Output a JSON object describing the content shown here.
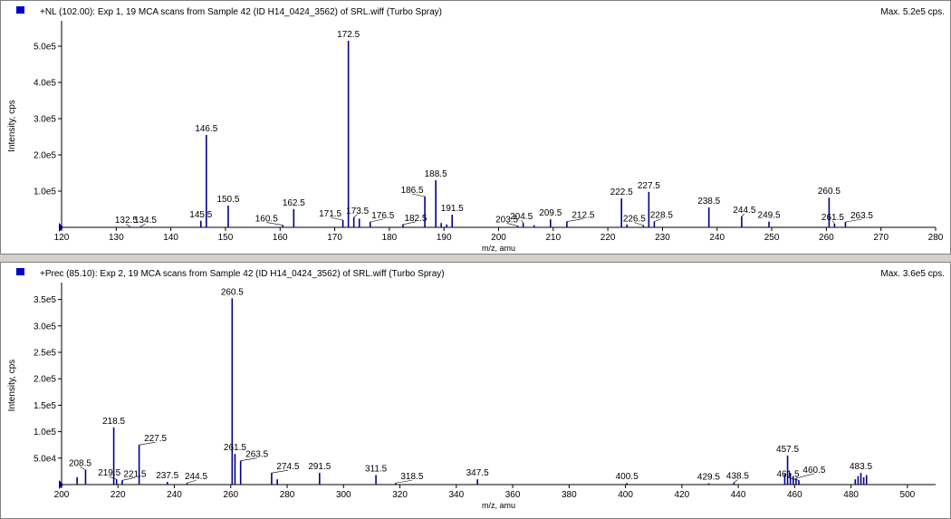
{
  "chart_data": [
    {
      "type": "bar",
      "title": "+NL (102.00): Exp 1, 19 MCA scans from Sample 42 (ID H14_0424_3562) of SRL.wiff (Turbo Spray)",
      "max_label": "Max. 5.2e5 cps.",
      "xlabel": "m/z, amu",
      "ylabel": "Intensity, cps",
      "xlim": [
        120,
        280
      ],
      "ylim": [
        0,
        560000
      ],
      "x_ticks": [
        120,
        130,
        140,
        150,
        160,
        170,
        180,
        190,
        200,
        210,
        220,
        230,
        240,
        250,
        260,
        270,
        280
      ],
      "y_ticks": [
        {
          "value": 100000,
          "label": "1.0e5"
        },
        {
          "value": 200000,
          "label": "2.0e5"
        },
        {
          "value": 300000,
          "label": "3.0e5"
        },
        {
          "value": 400000,
          "label": "4.0e5"
        },
        {
          "value": 500000,
          "label": "5.0e5"
        }
      ],
      "peaks": [
        {
          "x": 132.5,
          "y": 2000,
          "label": "132.5"
        },
        {
          "x": 134.5,
          "y": 2500,
          "label": "134.5"
        },
        {
          "x": 145.5,
          "y": 18000,
          "label": "145.5"
        },
        {
          "x": 146.5,
          "y": 255000,
          "label": "146.5"
        },
        {
          "x": 150.5,
          "y": 60000,
          "label": "150.5"
        },
        {
          "x": 160.5,
          "y": 6000,
          "label": "160.5"
        },
        {
          "x": 162.5,
          "y": 50000,
          "label": "162.5"
        },
        {
          "x": 171.5,
          "y": 20000,
          "label": "171.5"
        },
        {
          "x": 172.5,
          "y": 515000,
          "label": "172.5"
        },
        {
          "x": 173.5,
          "y": 28000,
          "label": "173.5"
        },
        {
          "x": 174.5,
          "y": 24000,
          "label": ""
        },
        {
          "x": 176.5,
          "y": 15000,
          "label": "176.5"
        },
        {
          "x": 182.5,
          "y": 8000,
          "label": "182.5"
        },
        {
          "x": 186.5,
          "y": 85000,
          "label": "186.5"
        },
        {
          "x": 188.5,
          "y": 130000,
          "label": "188.5"
        },
        {
          "x": 189.5,
          "y": 12000,
          "label": ""
        },
        {
          "x": 190.5,
          "y": 8000,
          "label": ""
        },
        {
          "x": 191.5,
          "y": 35000,
          "label": "191.5"
        },
        {
          "x": 203.5,
          "y": 4000,
          "label": "203.5"
        },
        {
          "x": 204.5,
          "y": 12000,
          "label": "204.5"
        },
        {
          "x": 206.5,
          "y": 6000,
          "label": ""
        },
        {
          "x": 209.5,
          "y": 22000,
          "label": "209.5"
        },
        {
          "x": 212.5,
          "y": 16000,
          "label": "212.5"
        },
        {
          "x": 222.5,
          "y": 80000,
          "label": "222.5"
        },
        {
          "x": 223.5,
          "y": 8000,
          "label": ""
        },
        {
          "x": 226.5,
          "y": 6000,
          "label": "226.5"
        },
        {
          "x": 227.5,
          "y": 98000,
          "label": "227.5"
        },
        {
          "x": 228.5,
          "y": 16000,
          "label": "228.5"
        },
        {
          "x": 238.5,
          "y": 55000,
          "label": "238.5"
        },
        {
          "x": 244.5,
          "y": 30000,
          "label": "244.5"
        },
        {
          "x": 249.5,
          "y": 16000,
          "label": "249.5"
        },
        {
          "x": 260.5,
          "y": 82000,
          "label": "260.5"
        },
        {
          "x": 261.5,
          "y": 10000,
          "label": "261.5"
        },
        {
          "x": 263.5,
          "y": 15000,
          "label": "263.5"
        }
      ]
    },
    {
      "type": "bar",
      "title": "+Prec (85.10): Exp 2, 19 MCA scans from Sample 42 (ID H14_0424_3562) of SRL.wiff (Turbo Spray)",
      "max_label": "Max. 3.6e5 cps.",
      "xlabel": "m/z, amu",
      "ylabel": "Intensity, cps",
      "xlim": [
        200,
        510
      ],
      "ylim": [
        0,
        375000
      ],
      "x_ticks": [
        200,
        220,
        240,
        260,
        280,
        300,
        320,
        340,
        360,
        380,
        400,
        420,
        440,
        460,
        480,
        500
      ],
      "y_ticks": [
        {
          "value": 50000,
          "label": "5.0e4"
        },
        {
          "value": 100000,
          "label": "1.0e5"
        },
        {
          "value": 150000,
          "label": "1.5e5"
        },
        {
          "value": 200000,
          "label": "2.0e5"
        },
        {
          "value": 250000,
          "label": "2.5e5"
        },
        {
          "value": 300000,
          "label": "3.0e5"
        },
        {
          "value": 350000,
          "label": "3.5e5"
        }
      ],
      "peaks": [
        {
          "x": 205.5,
          "y": 14000,
          "label": ""
        },
        {
          "x": 208.5,
          "y": 28000,
          "label": "208.5"
        },
        {
          "x": 218.5,
          "y": 108000,
          "label": "218.5"
        },
        {
          "x": 219.5,
          "y": 10000,
          "label": "219.5"
        },
        {
          "x": 221.5,
          "y": 8000,
          "label": "221.5"
        },
        {
          "x": 227.5,
          "y": 75000,
          "label": "227.5"
        },
        {
          "x": 237.5,
          "y": 5000,
          "label": "237.5"
        },
        {
          "x": 244.5,
          "y": 3000,
          "label": "244.5"
        },
        {
          "x": 260.5,
          "y": 352000,
          "label": "260.5"
        },
        {
          "x": 261.5,
          "y": 58000,
          "label": "261.5"
        },
        {
          "x": 263.5,
          "y": 45000,
          "label": "263.5"
        },
        {
          "x": 274.5,
          "y": 22000,
          "label": "274.5"
        },
        {
          "x": 276.5,
          "y": 10000,
          "label": ""
        },
        {
          "x": 291.5,
          "y": 22000,
          "label": "291.5"
        },
        {
          "x": 311.5,
          "y": 18000,
          "label": "311.5"
        },
        {
          "x": 318.5,
          "y": 3000,
          "label": "318.5"
        },
        {
          "x": 347.5,
          "y": 10000,
          "label": "347.5"
        },
        {
          "x": 400.5,
          "y": 3000,
          "label": "400.5"
        },
        {
          "x": 429.5,
          "y": 2500,
          "label": "429.5"
        },
        {
          "x": 438.5,
          "y": 4000,
          "label": "438.5"
        },
        {
          "x": 456.5,
          "y": 20000,
          "label": ""
        },
        {
          "x": 457.5,
          "y": 55000,
          "label": "457.5"
        },
        {
          "x": 458.5,
          "y": 22000,
          "label": ""
        },
        {
          "x": 459.5,
          "y": 15000,
          "label": ""
        },
        {
          "x": 460.5,
          "y": 12000,
          "label": "460.5"
        },
        {
          "x": 461.5,
          "y": 8000,
          "label": "461.5"
        },
        {
          "x": 481.5,
          "y": 10000,
          "label": ""
        },
        {
          "x": 482.5,
          "y": 16000,
          "label": ""
        },
        {
          "x": 483.5,
          "y": 22000,
          "label": "483.5"
        },
        {
          "x": 484.5,
          "y": 14000,
          "label": ""
        },
        {
          "x": 485.5,
          "y": 18000,
          "label": ""
        }
      ]
    }
  ],
  "colors": {
    "accent": "#00008b",
    "marker": "#0000c8",
    "text": "#000000"
  }
}
